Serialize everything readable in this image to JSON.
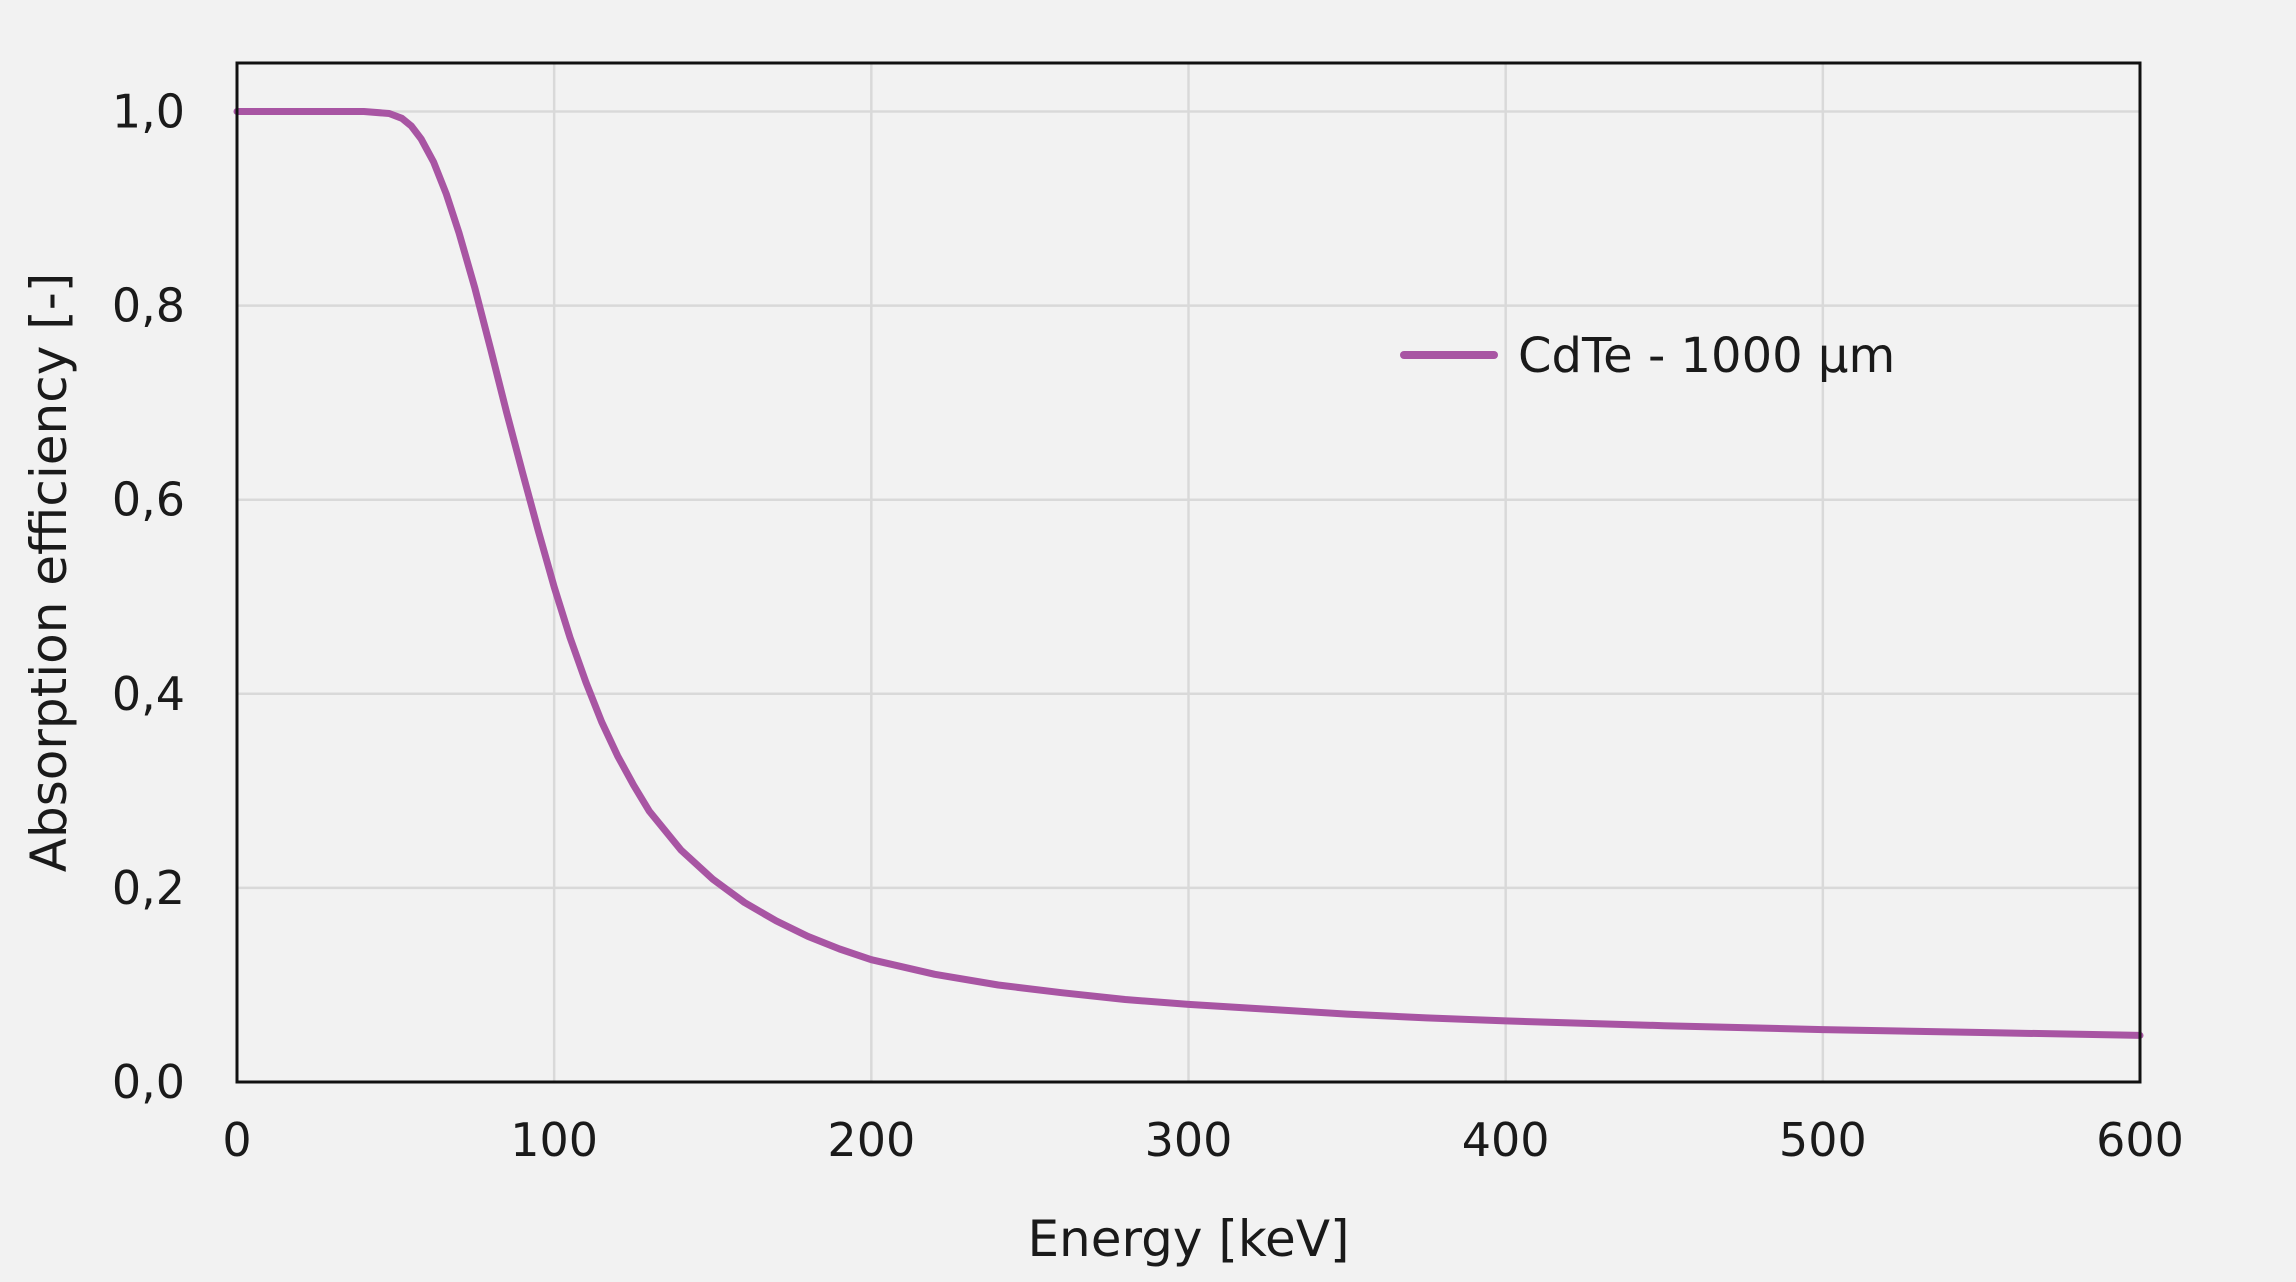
{
  "chart_data": {
    "type": "line",
    "title": "",
    "xlabel": "Energy [keV]",
    "ylabel": "Absorption efficiency [-]",
    "xlim": [
      0,
      600
    ],
    "ylim": [
      0,
      1.05
    ],
    "x_ticks": [
      0,
      100,
      200,
      300,
      400,
      500,
      600
    ],
    "x_tick_labels": [
      "0",
      "100",
      "200",
      "300",
      "400",
      "500",
      "600"
    ],
    "y_ticks": [
      0,
      0.2,
      0.4,
      0.6,
      0.8,
      1.0
    ],
    "y_tick_labels": [
      "0,0",
      "0,2",
      "0,4",
      "0,6",
      "0,8",
      "1,0"
    ],
    "grid": true,
    "legend_position": "top-right",
    "series": [
      {
        "name": "CdTe - 1000 µm",
        "color": "#a855a3",
        "x": [
          0,
          40,
          48,
          52,
          55,
          58,
          62,
          66,
          70,
          75,
          80,
          85,
          90,
          95,
          100,
          105,
          110,
          115,
          120,
          125,
          130,
          140,
          150,
          160,
          170,
          180,
          190,
          200,
          220,
          240,
          260,
          280,
          300,
          325,
          350,
          375,
          400,
          450,
          500,
          550,
          600
        ],
        "y": [
          1.0,
          1.0,
          0.998,
          0.993,
          0.985,
          0.972,
          0.948,
          0.915,
          0.875,
          0.818,
          0.755,
          0.69,
          0.628,
          0.568,
          0.51,
          0.458,
          0.412,
          0.371,
          0.336,
          0.306,
          0.279,
          0.239,
          0.209,
          0.185,
          0.166,
          0.15,
          0.137,
          0.126,
          0.111,
          0.1,
          0.092,
          0.085,
          0.08,
          0.075,
          0.07,
          0.066,
          0.063,
          0.058,
          0.054,
          0.051,
          0.048
        ]
      }
    ]
  }
}
